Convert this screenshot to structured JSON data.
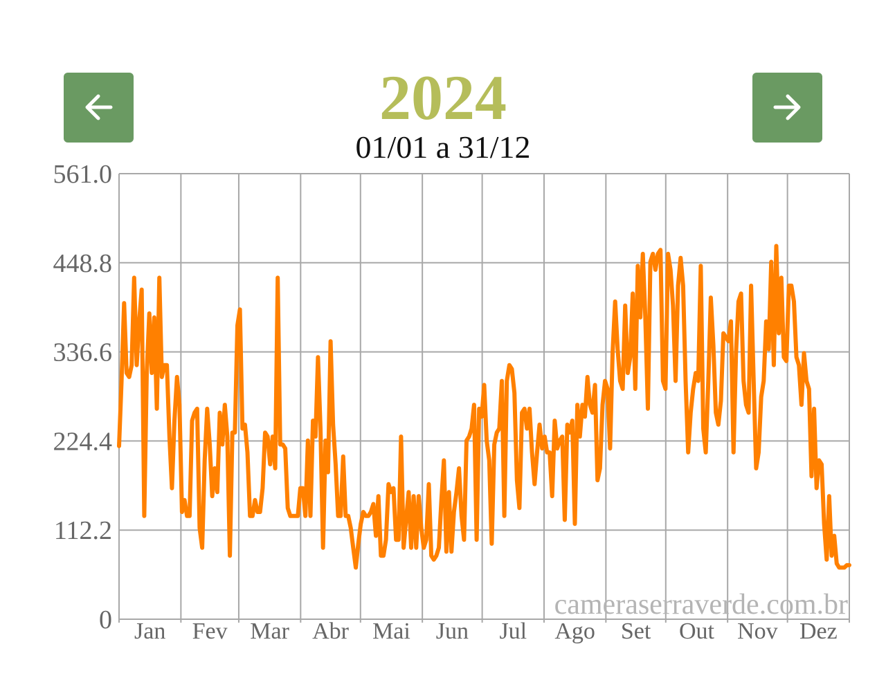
{
  "nav": {
    "prev_icon": "arrow-left-icon",
    "next_icon": "arrow-right-icon",
    "button_color": "#6a9a62"
  },
  "header": {
    "year": "2024",
    "range": "01/01 a 31/12"
  },
  "watermark": "cameraserraverde.com.br",
  "chart_data": {
    "type": "line",
    "series": [
      {
        "color": "#ff8000",
        "values": [
          218,
          300,
          398,
          310,
          305,
          320,
          430,
          320,
          375,
          415,
          130,
          310,
          385,
          310,
          380,
          265,
          430,
          305,
          320,
          320,
          230,
          165,
          250,
          305,
          270,
          135,
          150,
          130,
          130,
          250,
          260,
          265,
          115,
          90,
          200,
          265,
          220,
          155,
          190,
          160,
          260,
          220,
          270,
          230,
          80,
          235,
          235,
          370,
          390,
          240,
          245,
          210,
          130,
          130,
          150,
          135,
          135,
          165,
          235,
          230,
          195,
          230,
          190,
          430,
          220,
          220,
          215,
          140,
          130,
          130,
          130,
          130,
          165,
          165,
          130,
          225,
          130,
          250,
          230,
          330,
          240,
          90,
          225,
          185,
          350,
          245,
          195,
          130,
          130,
          205,
          130,
          130,
          115,
          90,
          65,
          95,
          120,
          135,
          130,
          130,
          135,
          145,
          105,
          155,
          80,
          80,
          100,
          170,
          160,
          165,
          100,
          100,
          230,
          90,
          125,
          160,
          90,
          155,
          90,
          155,
          115,
          90,
          100,
          170,
          80,
          75,
          80,
          90,
          150,
          200,
          85,
          160,
          85,
          135,
          160,
          190,
          130,
          100,
          225,
          230,
          240,
          270,
          100,
          265,
          255,
          295,
          225,
          200,
          95,
          220,
          235,
          240,
          300,
          130,
          300,
          320,
          315,
          285,
          175,
          140,
          260,
          265,
          240,
          265,
          210,
          170,
          210,
          245,
          215,
          230,
          210,
          210,
          155,
          250,
          215,
          225,
          230,
          125,
          245,
          235,
          250,
          120,
          270,
          230,
          270,
          255,
          305,
          270,
          260,
          295,
          175,
          190,
          270,
          300,
          290,
          215,
          335,
          400,
          340,
          300,
          290,
          395,
          310,
          330,
          410,
          290,
          445,
          380,
          460,
          380,
          265,
          450,
          460,
          440,
          460,
          465,
          300,
          290,
          460,
          440,
          395,
          300,
          420,
          455,
          420,
          300,
          210,
          260,
          290,
          310,
          300,
          445,
          240,
          210,
          300,
          405,
          345,
          260,
          245,
          275,
          360,
          355,
          350,
          375,
          210,
          335,
          400,
          410,
          300,
          270,
          260,
          420,
          300,
          190,
          210,
          280,
          300,
          375,
          340,
          450,
          320,
          470,
          360,
          430,
          330,
          325,
          420,
          420,
          400,
          330,
          320,
          270,
          335,
          300,
          290,
          180,
          265,
          165,
          200,
          195,
          120,
          75,
          155,
          80,
          105,
          70,
          65,
          65,
          65,
          68,
          68
        ]
      }
    ],
    "x": {
      "unit": "day",
      "start": "01/01",
      "end": "31/12",
      "tick_labels": [
        "Jan",
        "Fev",
        "Mar",
        "Abr",
        "Mai",
        "Jun",
        "Jul",
        "Ago",
        "Set",
        "Out",
        "Nov",
        "Dez"
      ]
    },
    "y": {
      "tick_labels": [
        "0",
        "112.2",
        "224.4",
        "336.6",
        "448.8",
        "561.0"
      ],
      "ylim": [
        0,
        561
      ]
    },
    "grid": true,
    "legend": "none"
  }
}
